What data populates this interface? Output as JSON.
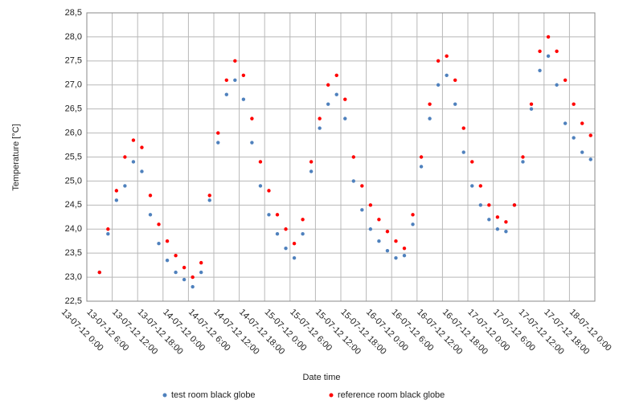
{
  "chart_data": {
    "type": "scatter",
    "xlabel": "Date time",
    "ylabel": "Temperature [°C]",
    "legend": "bottom",
    "grid": true,
    "x": [
      "13-07-12 3:00",
      "13-07-12 5:00",
      "13-07-12 7:00",
      "13-07-12 9:00",
      "13-07-12 11:00",
      "13-07-12 13:00",
      "13-07-12 15:00",
      "13-07-12 17:00",
      "13-07-12 19:00",
      "13-07-12 21:00",
      "13-07-12 23:00",
      "14-07-12 1:00",
      "14-07-12 3:00",
      "14-07-12 5:00",
      "14-07-12 7:00",
      "14-07-12 9:00",
      "14-07-12 11:00",
      "14-07-12 13:00",
      "14-07-12 15:00",
      "14-07-12 17:00",
      "14-07-12 19:00",
      "14-07-12 21:00",
      "14-07-12 23:00",
      "15-07-12 1:00",
      "15-07-12 3:00",
      "15-07-12 5:00",
      "15-07-12 7:00",
      "15-07-12 9:00",
      "15-07-12 11:00",
      "15-07-12 13:00",
      "15-07-12 15:00",
      "15-07-12 17:00",
      "15-07-12 19:00",
      "15-07-12 21:00",
      "15-07-12 23:00",
      "16-07-12 1:00",
      "16-07-12 3:00",
      "16-07-12 5:00",
      "16-07-12 7:00",
      "16-07-12 9:00",
      "16-07-12 11:00",
      "16-07-12 13:00",
      "16-07-12 15:00",
      "16-07-12 17:00",
      "16-07-12 19:00",
      "16-07-12 21:00",
      "16-07-12 23:00",
      "17-07-12 1:00",
      "17-07-12 3:00",
      "17-07-12 5:00",
      "17-07-12 7:00",
      "17-07-12 9:00",
      "17-07-12 11:00",
      "17-07-12 13:00",
      "17-07-12 15:00",
      "17-07-12 17:00",
      "17-07-12 19:00",
      "17-07-12 21:00",
      "17-07-12 23:00"
    ],
    "series": [
      {
        "name": "test room black globe",
        "color": "#4f81bd",
        "values": [
          23.1,
          23.9,
          24.6,
          24.9,
          25.4,
          25.2,
          24.3,
          23.7,
          23.35,
          23.1,
          22.95,
          22.8,
          23.1,
          24.6,
          25.8,
          26.8,
          27.1,
          26.7,
          25.8,
          24.9,
          24.3,
          23.9,
          23.6,
          23.4,
          23.9,
          25.2,
          26.1,
          26.6,
          26.8,
          26.3,
          25.0,
          24.4,
          24.0,
          23.75,
          23.55,
          23.4,
          23.45,
          24.1,
          25.3,
          26.3,
          27.0,
          27.2,
          26.6,
          25.6,
          24.9,
          24.5,
          24.2,
          24.0,
          23.95,
          24.5,
          25.4,
          26.5,
          27.3,
          27.6,
          27.0,
          26.2,
          25.9,
          25.6,
          25.45
        ]
      },
      {
        "name": "reference room black globe",
        "color": "#ff0000",
        "values": [
          23.1,
          24.0,
          24.8,
          25.5,
          25.85,
          25.7,
          24.7,
          24.1,
          23.75,
          23.45,
          23.2,
          23.0,
          23.3,
          24.7,
          26.0,
          27.1,
          27.5,
          27.2,
          26.3,
          25.4,
          24.8,
          24.3,
          24.0,
          23.7,
          24.2,
          25.4,
          26.3,
          27.0,
          27.2,
          26.7,
          25.5,
          24.9,
          24.5,
          24.2,
          23.95,
          23.75,
          23.6,
          24.3,
          25.5,
          26.6,
          27.5,
          27.6,
          27.1,
          26.1,
          25.4,
          24.9,
          24.5,
          24.25,
          24.15,
          24.5,
          25.5,
          26.6,
          27.7,
          28.0,
          27.7,
          27.1,
          26.6,
          26.2,
          25.95
        ]
      }
    ],
    "xlim": [
      "13-07-12 0:00",
      "18-07-12 0:00"
    ],
    "xticks": [
      "13-07-12 0:00",
      "13-07-12 6:00",
      "13-07-12 12:00",
      "13-07-12 18:00",
      "14-07-12 0:00",
      "14-07-12 6:00",
      "14-07-12 12:00",
      "14-07-12 18:00",
      "15-07-12 0:00",
      "15-07-12 6:00",
      "15-07-12 12:00",
      "15-07-12 18:00",
      "16-07-12 0:00",
      "16-07-12 6:00",
      "16-07-12 12:00",
      "16-07-12 18:00",
      "17-07-12 0:00",
      "17-07-12 6:00",
      "17-07-12 12:00",
      "17-07-12 18:00",
      "18-07-12 0:00"
    ],
    "ylim": [
      22.5,
      28.5
    ],
    "yticks": [
      {
        "value": 22.5,
        "label": "22,5"
      },
      {
        "value": 23.0,
        "label": "23,0"
      },
      {
        "value": 23.5,
        "label": "23,5"
      },
      {
        "value": 24.0,
        "label": "24,0"
      },
      {
        "value": 24.5,
        "label": "24,5"
      },
      {
        "value": 25.0,
        "label": "25,0"
      },
      {
        "value": 25.5,
        "label": "25,5"
      },
      {
        "value": 26.0,
        "label": "26,0"
      },
      {
        "value": 26.5,
        "label": "26,5"
      },
      {
        "value": 27.0,
        "label": "27,0"
      },
      {
        "value": 27.5,
        "label": "27,5"
      },
      {
        "value": 28.0,
        "label": "28,0"
      },
      {
        "value": 28.5,
        "label": "28,5"
      }
    ]
  }
}
